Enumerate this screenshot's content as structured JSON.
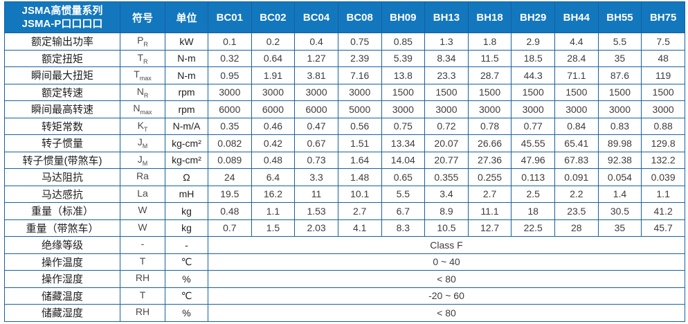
{
  "table": {
    "title_line1": "JSMA高惯量系列",
    "title_line2": "JSMA-P口口口口",
    "symbol_header": "符号",
    "unit_header": "单位",
    "models": [
      "BC01",
      "BC02",
      "BC04",
      "BC08",
      "BH09",
      "BH13",
      "BH18",
      "BH29",
      "BH44",
      "BH55",
      "BH75"
    ],
    "rows": [
      {
        "label": "额定输出功率",
        "sym": "P",
        "sub": "R",
        "unit": "kW",
        "values": [
          "0.1",
          "0.2",
          "0.4",
          "0.75",
          "0.85",
          "1.3",
          "1.8",
          "2.9",
          "4.4",
          "5.5",
          "7.5"
        ]
      },
      {
        "label": "额定扭矩",
        "sym": "T",
        "sub": "R",
        "unit": "N-m",
        "values": [
          "0.32",
          "0.64",
          "1.27",
          "2.39",
          "5.39",
          "8.34",
          "11.5",
          "18.5",
          "28.4",
          "35",
          "48"
        ]
      },
      {
        "label": "瞬间最大扭矩",
        "sym": "T",
        "sub": "max",
        "unit": "N-m",
        "values": [
          "0.95",
          "1.91",
          "3.81",
          "7.16",
          "13.8",
          "23.3",
          "28.7",
          "44.3",
          "71.1",
          "87.6",
          "119"
        ]
      },
      {
        "label": "额定转速",
        "sym": "N",
        "sub": "R",
        "unit": "rpm",
        "values": [
          "3000",
          "3000",
          "3000",
          "3000",
          "1500",
          "1500",
          "1500",
          "1500",
          "1500",
          "1500",
          "1500"
        ]
      },
      {
        "label": "瞬间最高转速",
        "sym": "N",
        "sub": "max",
        "unit": "rpm",
        "values": [
          "6000",
          "6000",
          "6000",
          "5000",
          "3000",
          "3000",
          "3000",
          "3000",
          "3000",
          "3000",
          "3000"
        ]
      },
      {
        "label": "转矩常数",
        "sym": "K",
        "sub": "T",
        "unit": "N-m/A",
        "values": [
          "0.35",
          "0.46",
          "0.47",
          "0.56",
          "0.75",
          "0.72",
          "0.78",
          "0.77",
          "0.84",
          "0.83",
          "0.88"
        ]
      },
      {
        "label": "转子惯量",
        "sym": "J",
        "sub": "M",
        "unit": "kg-cm²",
        "values": [
          "0.082",
          "0.42",
          "0.67",
          "1.51",
          "13.34",
          "20.07",
          "26.66",
          "45.55",
          "65.41",
          "89.98",
          "129.8"
        ]
      },
      {
        "label": "转子惯量(带煞车)",
        "sym": "J",
        "sub": "M",
        "unit": "kg-cm²",
        "values": [
          "0.089",
          "0.48",
          "0.73",
          "1.64",
          "14.04",
          "20.77",
          "27.36",
          "47.96",
          "67.83",
          "92.38",
          "132.2"
        ]
      },
      {
        "label": "马达阻抗",
        "sym": "Ra",
        "sub": "",
        "unit": "Ω",
        "values": [
          "24",
          "6.4",
          "3.3",
          "1.48",
          "0.65",
          "0.355",
          "0.255",
          "0.113",
          "0.091",
          "0.054",
          "0.039"
        ]
      },
      {
        "label": "马达感抗",
        "sym": "La",
        "sub": "",
        "unit": "mH",
        "values": [
          "19.5",
          "16.2",
          "11",
          "10.1",
          "5.5",
          "3.4",
          "2.7",
          "2.5",
          "2.2",
          "1.4",
          "1.1"
        ]
      },
      {
        "label": "重量（标准）",
        "sym": "W",
        "sub": "",
        "unit": "kg",
        "values": [
          "0.48",
          "1.1",
          "1.53",
          "2.7",
          "6.7",
          "8.9",
          "11.1",
          "18",
          "23.5",
          "30.5",
          "41.2"
        ]
      },
      {
        "label": "重量（带煞车）",
        "sym": "W",
        "sub": "",
        "unit": "kg",
        "values": [
          "0.7",
          "1.5",
          "2.03",
          "4.1",
          "8.3",
          "10.5",
          "12.7",
          "22.5",
          "28",
          "35",
          "45.7"
        ]
      }
    ],
    "span_rows": [
      {
        "label": "绝缘等级",
        "sym": "-",
        "sub": "",
        "unit": "-",
        "value": "Class F"
      },
      {
        "label": "操作温度",
        "sym": "T",
        "sub": "",
        "unit": "℃",
        "value": "0 ~ 40"
      },
      {
        "label": "操作湿度",
        "sym": "RH",
        "sub": "",
        "unit": "%",
        "value": "< 80"
      },
      {
        "label": "储藏温度",
        "sym": "T",
        "sub": "",
        "unit": "℃",
        "value": "-20 ~ 60"
      },
      {
        "label": "储藏湿度",
        "sym": "RH",
        "sub": "",
        "unit": "%",
        "value": "< 80"
      }
    ],
    "colors": {
      "header_bg": "#1377BE",
      "border": "#15609F",
      "label_text": "#1e1e1e",
      "value_text": "#3c3c3c"
    }
  }
}
